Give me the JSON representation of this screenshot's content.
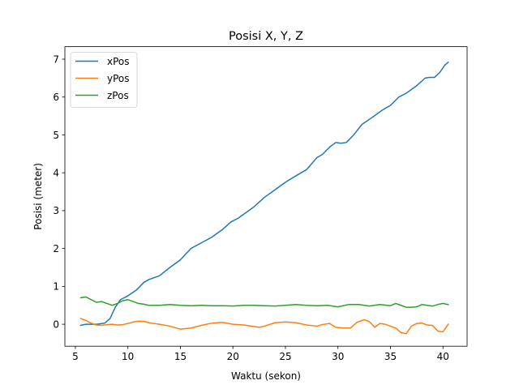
{
  "chart_data": {
    "type": "line",
    "title": "Posisi X, Y, Z",
    "xlabel": "Waktu (sekon)",
    "ylabel": "Posisi (meter)",
    "xlim": [
      4.0,
      42.3
    ],
    "ylim": [
      -0.58,
      7.33
    ],
    "xticks": [
      5,
      10,
      15,
      20,
      25,
      30,
      35,
      40
    ],
    "yticks": [
      0,
      1,
      2,
      3,
      4,
      5,
      6,
      7
    ],
    "grid": false,
    "legend": "upper-left",
    "series": [
      {
        "name": "xPos",
        "color": "#1f77b4",
        "x": [
          5.5,
          6,
          7,
          7.8,
          8.3,
          8.8,
          9.3,
          10,
          10.8,
          11.5,
          12,
          13,
          14,
          15,
          15.5,
          16,
          17,
          18,
          19,
          19.8,
          20.5,
          21,
          22,
          23,
          24,
          25,
          26,
          27,
          28,
          28.5,
          29.3,
          29.8,
          30.3,
          30.8,
          31.5,
          32.3,
          33.2,
          34.2,
          35,
          35.8,
          36.5,
          37.5,
          38.3,
          38.7,
          39.2,
          39.7,
          40.2,
          40.5
        ],
        "y": [
          -0.03,
          0.0,
          0.0,
          0.03,
          0.15,
          0.45,
          0.65,
          0.75,
          0.9,
          1.1,
          1.18,
          1.28,
          1.5,
          1.7,
          1.85,
          2.0,
          2.15,
          2.3,
          2.5,
          2.7,
          2.8,
          2.9,
          3.1,
          3.35,
          3.55,
          3.75,
          3.92,
          4.08,
          4.4,
          4.48,
          4.7,
          4.8,
          4.78,
          4.8,
          5.0,
          5.28,
          5.45,
          5.65,
          5.78,
          6.0,
          6.1,
          6.3,
          6.5,
          6.52,
          6.52,
          6.65,
          6.85,
          6.92
        ]
      },
      {
        "name": "yPos",
        "color": "#ff7f0e",
        "x": [
          5.5,
          6,
          6.5,
          7,
          7.5,
          8,
          8.5,
          9,
          9.5,
          10,
          10.5,
          11,
          11.5,
          12,
          13,
          14,
          15,
          16,
          17,
          18,
          19,
          20,
          21,
          22,
          22.5,
          23,
          24,
          25,
          26,
          27,
          28,
          28.5,
          29.2,
          29.8,
          30.5,
          31.2,
          31.8,
          32.5,
          33,
          33.5,
          34,
          34.5,
          35,
          35.5,
          36,
          36.5,
          37,
          37.5,
          38,
          38.5,
          39,
          39.5,
          40,
          40.5
        ],
        "y": [
          0.15,
          0.1,
          0.03,
          -0.02,
          -0.03,
          -0.01,
          0.0,
          -0.02,
          -0.01,
          0.02,
          0.06,
          0.08,
          0.08,
          0.04,
          0.0,
          -0.05,
          -0.13,
          -0.1,
          -0.03,
          0.03,
          0.05,
          0.0,
          -0.02,
          -0.06,
          -0.08,
          -0.05,
          0.04,
          0.06,
          0.04,
          -0.02,
          -0.05,
          -0.01,
          0.02,
          -0.08,
          -0.1,
          -0.1,
          0.05,
          0.12,
          0.07,
          -0.08,
          0.02,
          0.0,
          -0.05,
          -0.1,
          -0.22,
          -0.25,
          -0.05,
          0.02,
          0.03,
          -0.02,
          -0.03,
          -0.18,
          -0.2,
          0.0
        ]
      },
      {
        "name": "zPos",
        "color": "#2ca02c",
        "x": [
          5.5,
          6,
          6.5,
          7,
          7.5,
          8,
          8.5,
          9,
          9.5,
          10,
          10.5,
          11,
          11.5,
          12,
          13,
          14,
          15,
          16,
          17,
          18,
          19,
          20,
          21,
          22,
          23,
          24,
          25,
          26,
          27,
          28,
          29,
          30,
          31,
          32,
          33,
          34,
          35,
          35.5,
          36,
          36.5,
          37,
          37.5,
          38,
          38.5,
          39,
          39.5,
          40,
          40.5
        ],
        "y": [
          0.7,
          0.72,
          0.65,
          0.58,
          0.6,
          0.55,
          0.5,
          0.55,
          0.62,
          0.65,
          0.6,
          0.55,
          0.53,
          0.5,
          0.5,
          0.52,
          0.5,
          0.49,
          0.5,
          0.49,
          0.49,
          0.48,
          0.5,
          0.5,
          0.49,
          0.48,
          0.5,
          0.52,
          0.5,
          0.49,
          0.5,
          0.46,
          0.52,
          0.52,
          0.48,
          0.52,
          0.49,
          0.55,
          0.5,
          0.45,
          0.45,
          0.46,
          0.52,
          0.5,
          0.48,
          0.52,
          0.55,
          0.52
        ]
      }
    ]
  }
}
